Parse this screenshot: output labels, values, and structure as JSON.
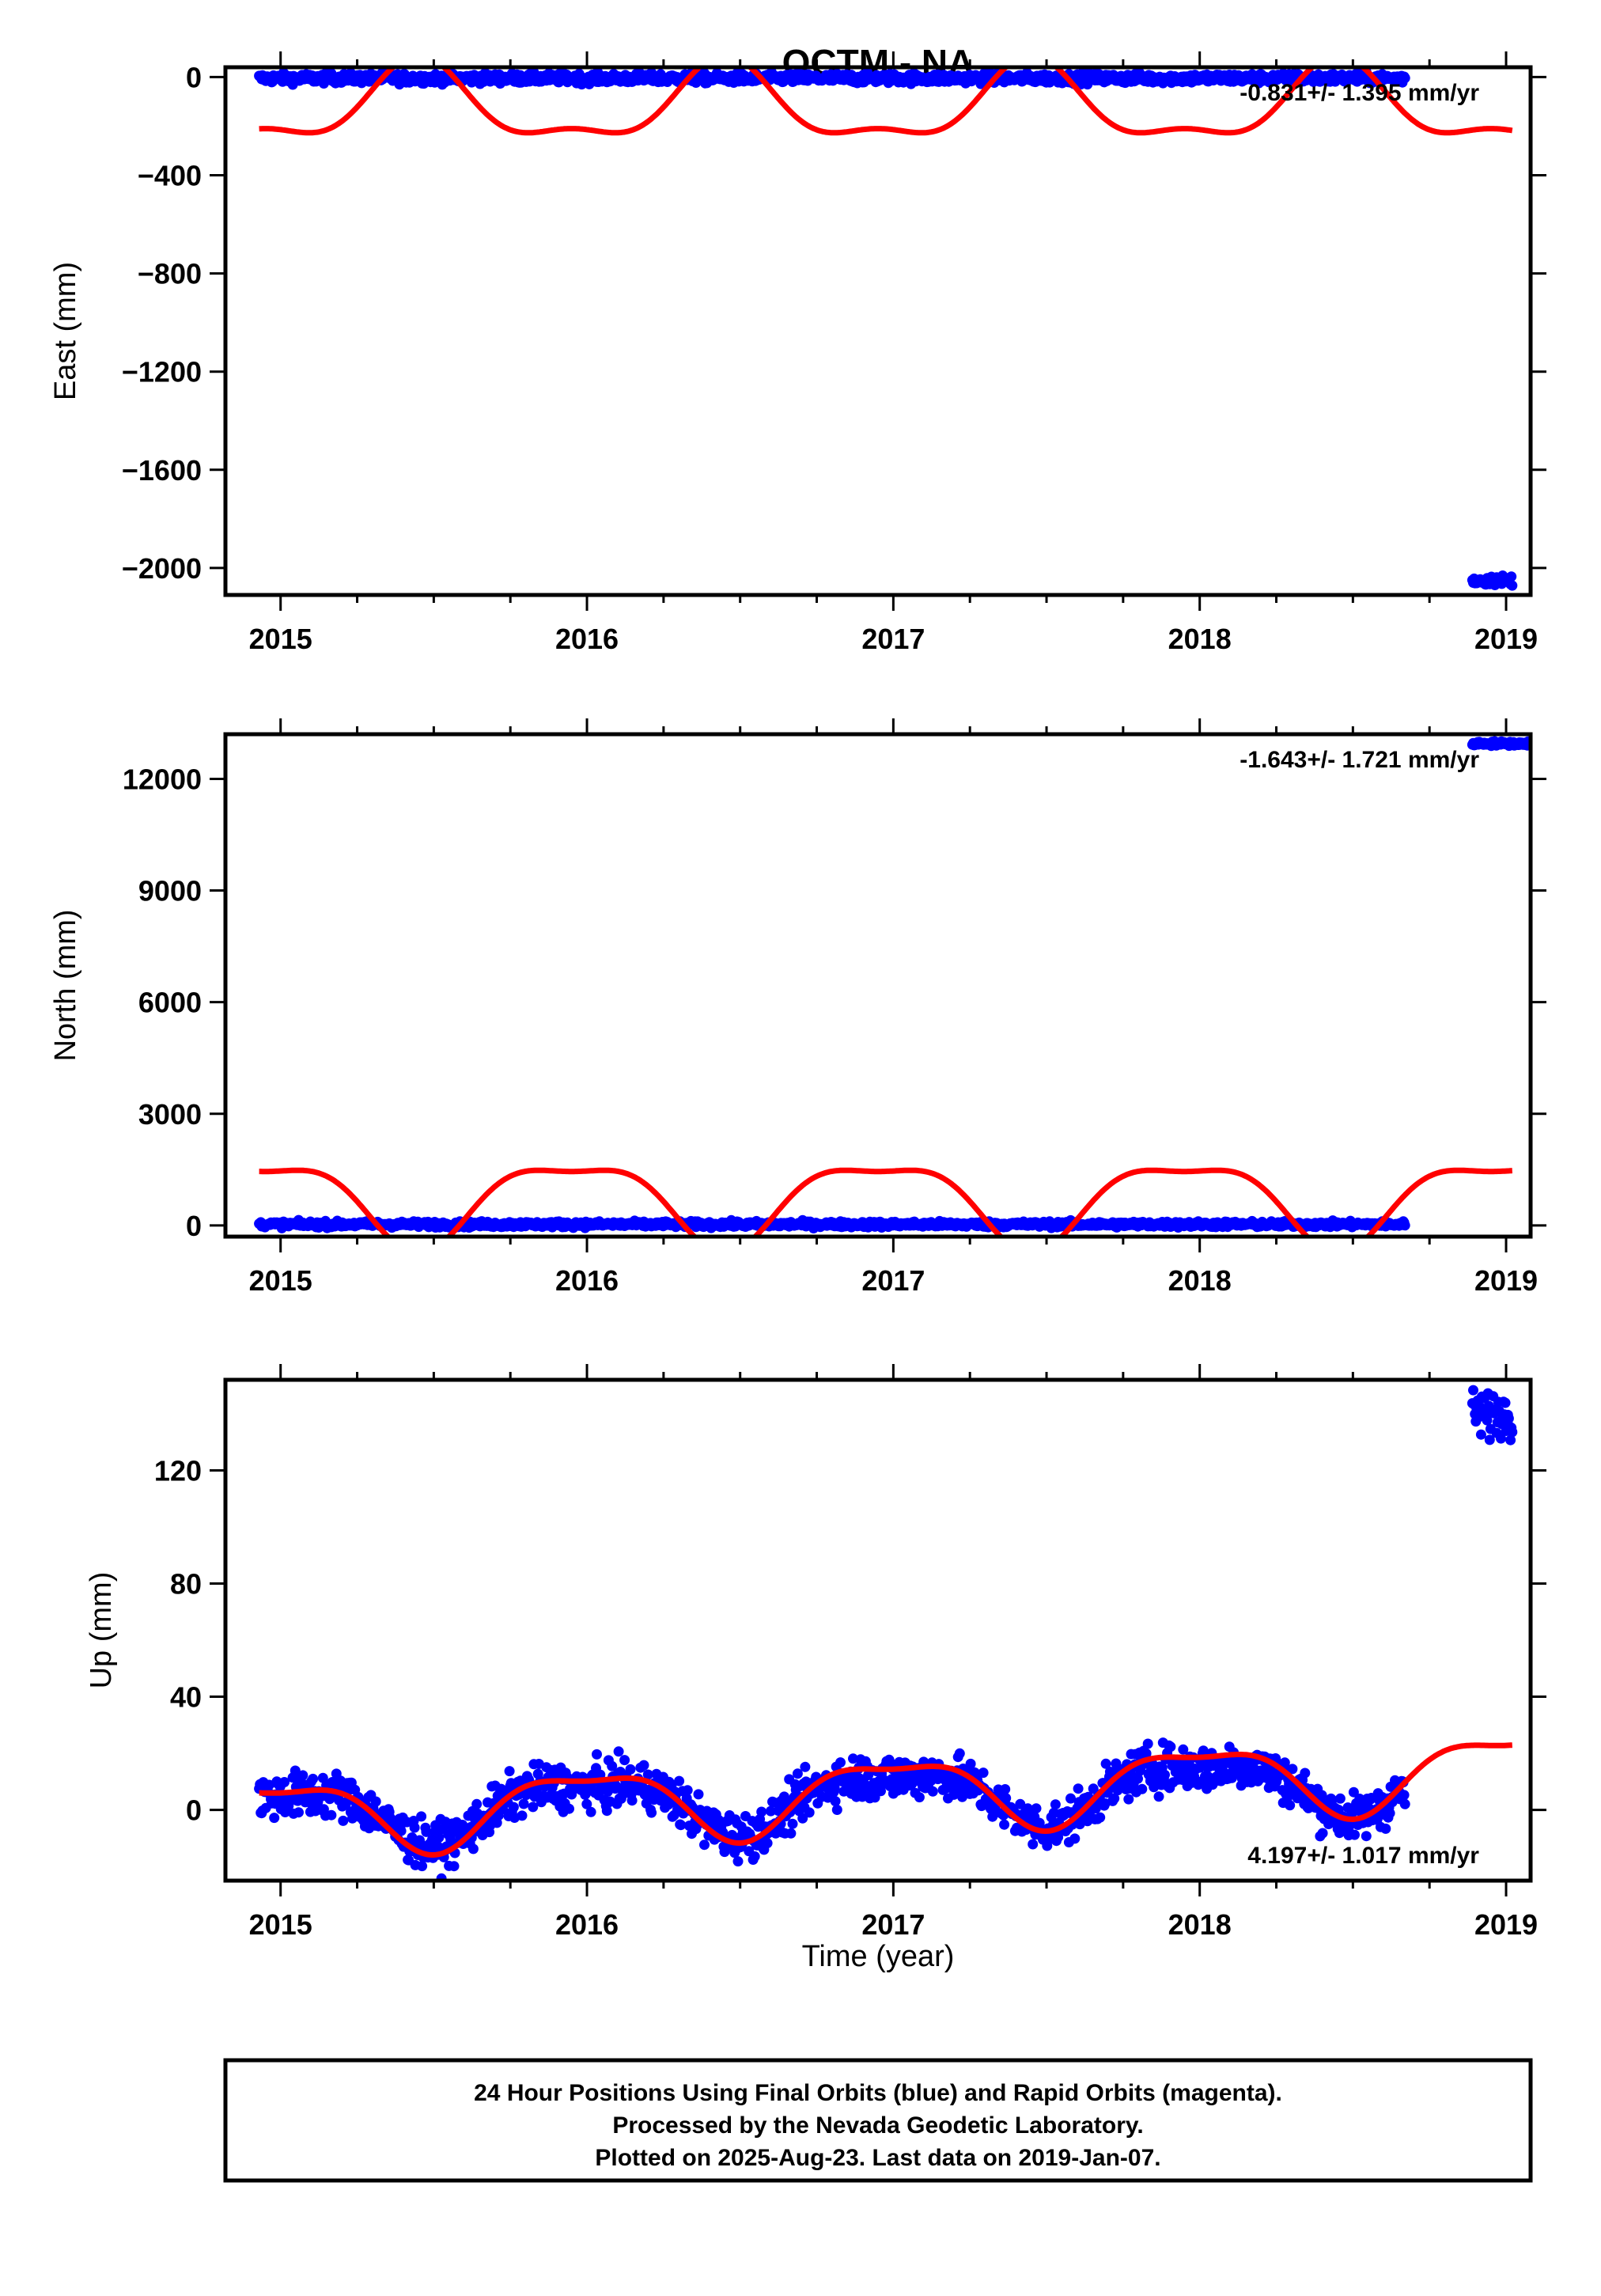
{
  "figure": {
    "title": "QCTM - NA",
    "xlabel": "Time (year)",
    "footer_lines": [
      "24 Hour Positions Using Final Orbits (blue) and Rapid Orbits (magenta).",
      "Processed by the Nevada Geodetic Laboratory.",
      "Plotted on 2025-Aug-23. Last data on 2019-Jan-07."
    ]
  },
  "colors": {
    "final_orbits": "#0000ff",
    "fit_curve": "#ff0000",
    "frame": "#000000"
  },
  "chart_data": [
    {
      "type": "scatter",
      "ylabel": "East (mm)",
      "rate_text": "-0.831+/- 1.395 mm/yr",
      "xlim": [
        2014.82,
        2019.08
      ],
      "ylim": [
        -2110,
        40
      ],
      "x_ticks": [
        2015,
        2016,
        2017,
        2018,
        2019
      ],
      "y_ticks": [
        0,
        -400,
        -800,
        -1200,
        -1600,
        -2000
      ],
      "series": [
        {
          "kind": "points",
          "color": "#0000ff",
          "segments": [
            {
              "x_start": 2014.93,
              "x_end": 2018.67,
              "y_center": -5,
              "spread": 10
            },
            {
              "x_start": 2018.89,
              "x_end": 2019.02,
              "y_center": -2050,
              "spread": 10
            }
          ]
        },
        {
          "kind": "fit",
          "color": "#ff0000",
          "offset": -120,
          "amp1": -150,
          "phase1_peak": 2014.95,
          "amp2": -60,
          "phase2_peak": 2015.2
        }
      ]
    },
    {
      "type": "scatter",
      "ylabel": "North (mm)",
      "rate_text": "-1.643+/- 1.721 mm/yr",
      "xlim": [
        2014.82,
        2019.08
      ],
      "ylim": [
        -300,
        13200
      ],
      "x_ticks": [
        2015,
        2016,
        2017,
        2018,
        2019
      ],
      "y_ticks": [
        0,
        3000,
        6000,
        9000,
        12000
      ],
      "series": [
        {
          "kind": "points",
          "color": "#0000ff",
          "segments": [
            {
              "x_start": 2014.93,
              "x_end": 2018.67,
              "y_center": 30,
              "spread": 40
            },
            {
              "x_start": 2018.89,
              "x_end": 2019.08,
              "y_center": 12950,
              "spread": 30
            }
          ]
        },
        {
          "kind": "fit",
          "color": "#ff0000",
          "offset": 700,
          "amp1": 1100,
          "phase1_peak": 2014.95,
          "amp2": 350,
          "phase2_peak": 2015.2
        }
      ]
    },
    {
      "type": "scatter",
      "ylabel": "Up (mm)",
      "rate_text": "4.197+/- 1.017 mm/yr",
      "xlim": [
        2014.82,
        2019.08
      ],
      "ylim": [
        -25,
        152
      ],
      "x_ticks": [
        2015,
        2016,
        2017,
        2018,
        2019
      ],
      "y_ticks": [
        0,
        40,
        80,
        120
      ],
      "series": [
        {
          "kind": "points",
          "color": "#0000ff",
          "segments": [
            {
              "x_start": 2014.93,
              "x_end": 2018.67,
              "y_center": 0,
              "spread": 4,
              "follows_fit": true
            },
            {
              "x_start": 2018.89,
              "x_end": 2019.02,
              "y_center": 140,
              "spread": 4
            }
          ]
        },
        {
          "kind": "fit",
          "color": "#ff0000",
          "offset": -2,
          "trend": 4.197,
          "amp1": 12,
          "phase1_peak": 2015.0,
          "amp2": 4,
          "phase2_peak": 2015.25
        }
      ]
    }
  ]
}
